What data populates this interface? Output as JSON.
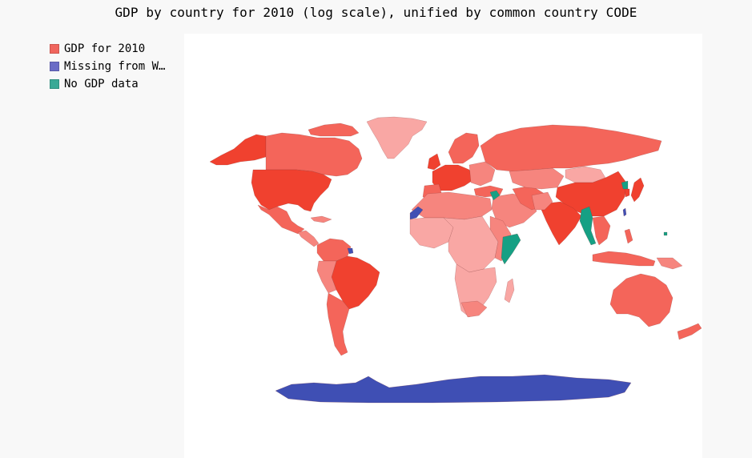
{
  "title": "GDP by country for 2010 (log scale), unified by common country CODE",
  "legend": {
    "items": [
      {
        "label": "GDP for 2010",
        "color": "#f0655d"
      },
      {
        "label": "Missing from W…",
        "color": "#6a6cc6"
      },
      {
        "label": "No GDP data",
        "color": "#3aa996"
      }
    ]
  },
  "colors": {
    "gdp_high": "#f0412f",
    "gdp_mid_high": "#f4655a",
    "gdp_mid": "#f6857e",
    "gdp_low": "#f9a7a4",
    "missing": "#3f4fb4",
    "no_data": "#16a084",
    "plot_background": "#ffffff",
    "page_background": "#f8f8f8"
  },
  "map": {
    "projection": "world",
    "scale": "log",
    "year": "2010",
    "categories": [
      "GDP for 2010",
      "Missing from W…",
      "No GDP data"
    ]
  }
}
